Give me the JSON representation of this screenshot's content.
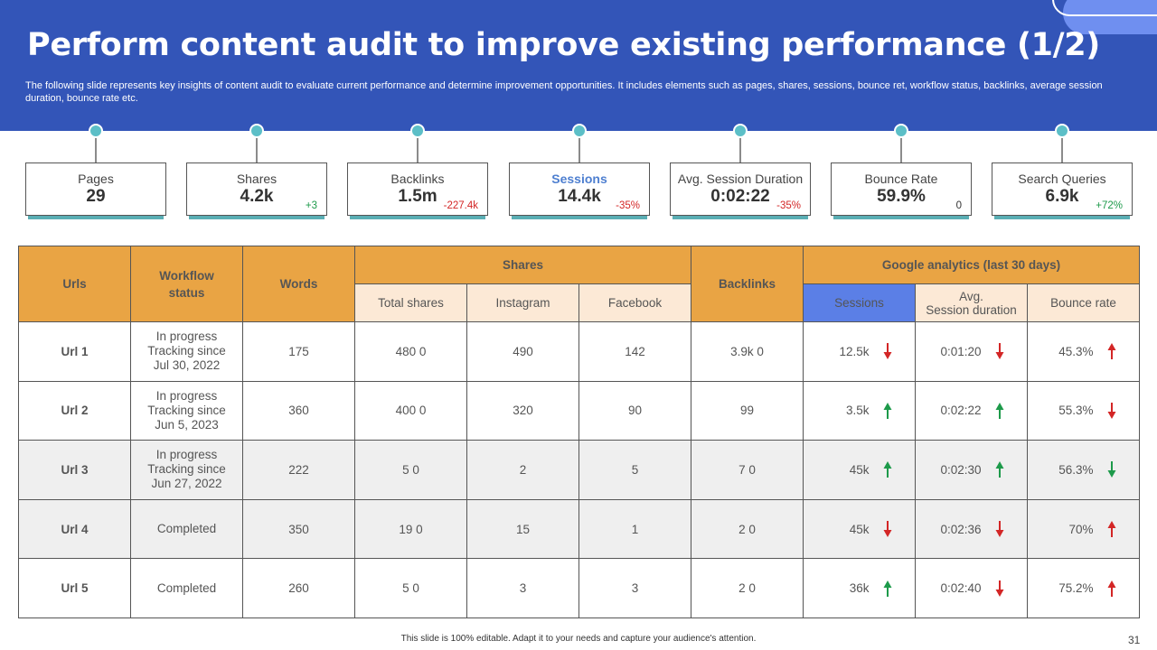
{
  "header": {
    "title": "Perform content audit to improve existing performance (1/2)",
    "subtitle": "The following slide represents key insights of content audit to  evaluate current performance and determine improvement opportunities. It includes elements such as pages, shares, sessions, bounce ret, workflow status, backlinks, average session duration, bounce rate etc."
  },
  "kpis": [
    {
      "label": "Pages",
      "value": "29",
      "delta": ""
    },
    {
      "label": "Shares",
      "value": "4.2k",
      "delta": "+3"
    },
    {
      "label": "Backlinks",
      "value": "1.5m",
      "delta": "-227.4k"
    },
    {
      "label": "Sessions",
      "value": "14.4k",
      "delta": "-35%"
    },
    {
      "label": "Avg. Session Duration",
      "value": "0:02:22",
      "delta": "-35%"
    },
    {
      "label": "Bounce Rate",
      "value": "59.9%",
      "delta": "0"
    },
    {
      "label": "Search Queries",
      "value": "6.9k",
      "delta": "+72%"
    }
  ],
  "table": {
    "headers": {
      "urls": "Urls",
      "workflow_line1": "Workflow",
      "workflow_line2": "status",
      "words": "Words",
      "shares": "Shares",
      "backlinks": "Backlinks",
      "google": "Google analytics (last 30 days)",
      "total_shares": "Total shares",
      "instagram": "Instagram",
      "facebook": "Facebook",
      "sessions": "Sessions",
      "avg_line1": "Avg.",
      "avg_line2": "Session duration",
      "bounce": "Bounce rate"
    },
    "rows": [
      {
        "url": "Url 1",
        "wf1": "In progress",
        "wf2": "Tracking since",
        "wf3": "Jul 30, 2022",
        "words": "175",
        "total": "480  0",
        "instagram": "490",
        "facebook": "142",
        "backlinks": "3.9k  0",
        "sessions": "12.5k",
        "sessions_trend": "down",
        "avg": "0:01:20",
        "avg_trend": "down",
        "bounce": "45.3%",
        "bounce_trend": "up-red"
      },
      {
        "url": "Url 2",
        "wf1": "In progress",
        "wf2": "Tracking since",
        "wf3": "Jun 5, 2023",
        "words": "360",
        "total": "400  0",
        "instagram": "320",
        "facebook": "90",
        "backlinks": "99",
        "sessions": "3.5k",
        "sessions_trend": "up",
        "avg": "0:02:22",
        "avg_trend": "up",
        "bounce": "55.3%",
        "bounce_trend": "down-red"
      },
      {
        "url": "Url 3",
        "wf1": "In progress",
        "wf2": "Tracking since",
        "wf3": "Jun 27, 2022",
        "words": "222",
        "total": "5  0",
        "instagram": "2",
        "facebook": "5",
        "backlinks": "7  0",
        "sessions": "45k",
        "sessions_trend": "up",
        "avg": "0:02:30",
        "avg_trend": "up",
        "bounce": "56.3%",
        "bounce_trend": "down-green"
      },
      {
        "url": "Url 4",
        "wf1": "Completed",
        "wf2": "",
        "wf3": "",
        "words": "350",
        "total": "19  0",
        "instagram": "15",
        "facebook": "1",
        "backlinks": "2  0",
        "sessions": "45k",
        "sessions_trend": "down",
        "avg": "0:02:36",
        "avg_trend": "down",
        "bounce": "70%",
        "bounce_trend": "up-red"
      },
      {
        "url": "Url 5",
        "wf1": "Completed",
        "wf2": "",
        "wf3": "",
        "words": "260",
        "total": "5  0",
        "instagram": "3",
        "facebook": "3",
        "backlinks": "2  0",
        "sessions": "36k",
        "sessions_trend": "up",
        "avg": "0:02:40",
        "avg_trend": "down",
        "bounce": "75.2%",
        "bounce_trend": "up-red"
      }
    ]
  },
  "footer": {
    "note": "This slide is 100% editable. Adapt it to your needs and capture your audience's attention.",
    "page_number": "31"
  },
  "colors": {
    "header_bg": "#3355b8",
    "table_header": "#e9a444",
    "sub_header": "#fce9d6",
    "sessions_header": "#5b7fe6",
    "kpi_accent": "#5cbfc7",
    "arrow_green": "#1d9a4a",
    "arrow_red": "#d32626"
  }
}
